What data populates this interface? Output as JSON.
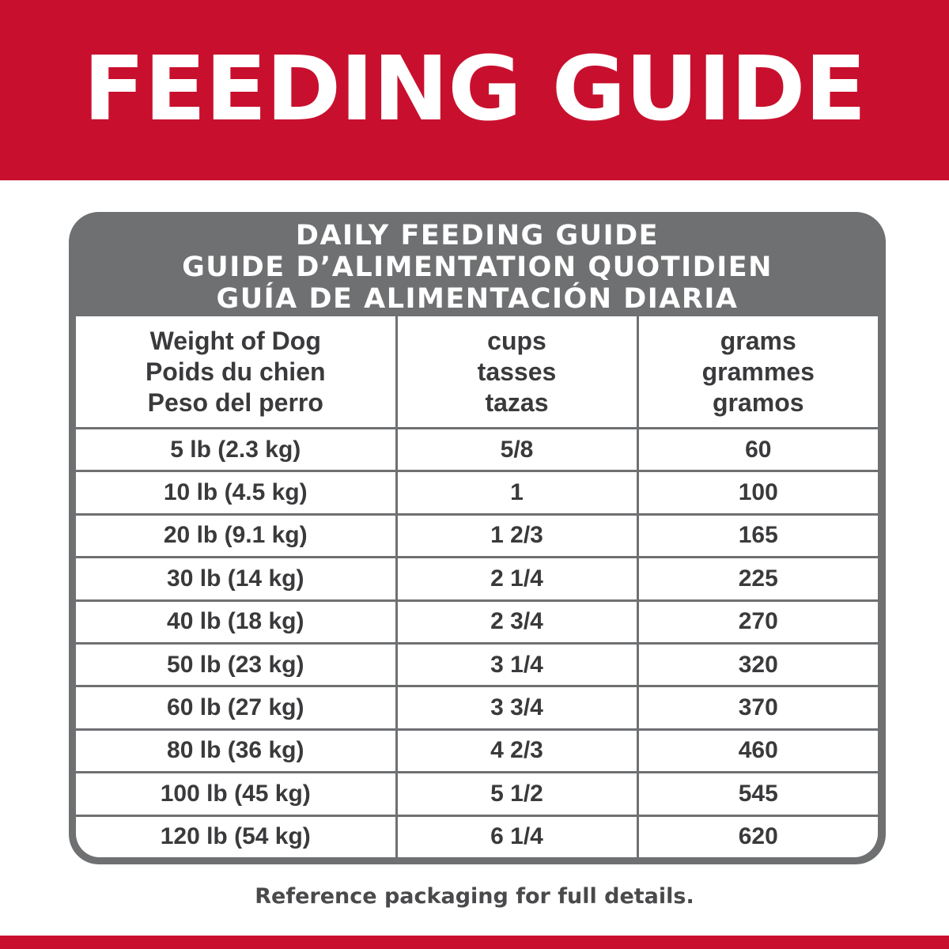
{
  "banner": {
    "title": "FEEDING GUIDE",
    "color": "#c8102e"
  },
  "card": {
    "header_lines": [
      "DAILY FEEDING GUIDE",
      "GUIDE D’ALIMENTATION QUOTIDIEN",
      "GUÍA DE ALIMENTACIÓN DIARIA"
    ],
    "header_color": "#6f7072"
  },
  "table": {
    "columns": [
      [
        "Weight of Dog",
        "Poids du chien",
        "Peso del perro"
      ],
      [
        "cups",
        "tasses",
        "tazas"
      ],
      [
        "grams",
        "grammes",
        "gramos"
      ]
    ],
    "rows": [
      [
        "5 lb (2.3 kg)",
        "5/8",
        "60"
      ],
      [
        "10 lb (4.5 kg)",
        "1",
        "100"
      ],
      [
        "20 lb (9.1 kg)",
        "1 2/3",
        "165"
      ],
      [
        "30 lb (14 kg)",
        "2 1/4",
        "225"
      ],
      [
        "40 lb (18 kg)",
        "2 3/4",
        "270"
      ],
      [
        "50 lb (23 kg)",
        "3 1/4",
        "320"
      ],
      [
        "60 lb (27 kg)",
        "3 3/4",
        "370"
      ],
      [
        "80 lb (36 kg)",
        "4 2/3",
        "460"
      ],
      [
        "100 lb (45 kg)",
        "5 1/2",
        "545"
      ],
      [
        "120 lb (54 kg)",
        "6 1/4",
        "620"
      ]
    ]
  },
  "footer": {
    "note": "Reference packaging for full details."
  }
}
